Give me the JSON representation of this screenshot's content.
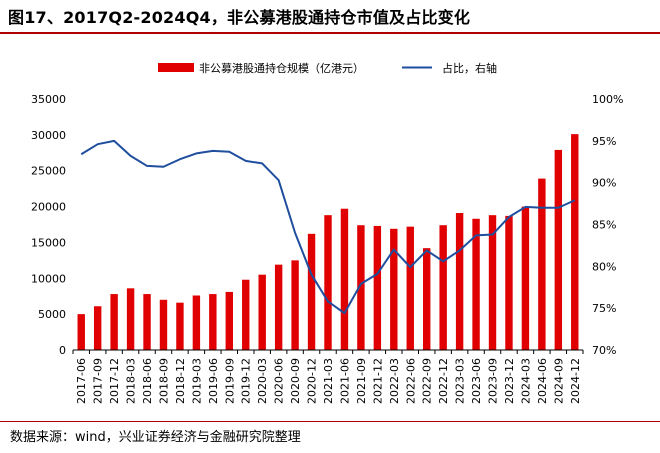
{
  "header": {
    "title": "图17、2017Q2-2024Q4，非公募港股通持仓市值及占比变化"
  },
  "footer": {
    "source": "数据来源：wind，兴业证券经济与金融研究院整理"
  },
  "chart_data": {
    "type": "bar",
    "categories": [
      "2017-06",
      "2017-09",
      "2017-12",
      "2018-03",
      "2018-06",
      "2018-09",
      "2018-12",
      "2019-03",
      "2019-06",
      "2019-09",
      "2019-12",
      "2020-03",
      "2020-06",
      "2020-09",
      "2020-12",
      "2021-03",
      "2021-06",
      "2021-09",
      "2021-12",
      "2022-03",
      "2022-06",
      "2022-09",
      "2022-12",
      "2023-03",
      "2023-06",
      "2023-09",
      "2023-12",
      "2024-03",
      "2024-06",
      "2024-09",
      "2024-12"
    ],
    "series": [
      {
        "name": "非公募港股通持仓规模（亿港元）",
        "type": "bar",
        "axis": "left",
        "color": "#e00000",
        "values": [
          5000,
          6100,
          7800,
          8600,
          7800,
          7000,
          6600,
          7600,
          7800,
          8100,
          9800,
          10500,
          11900,
          12500,
          16200,
          18800,
          19700,
          17400,
          17300,
          16900,
          17200,
          14200,
          17400,
          19100,
          18300,
          18800,
          18700,
          20000,
          23900,
          27900,
          30100
        ]
      },
      {
        "name": "占比，右轴",
        "type": "line",
        "axis": "right",
        "color": "#1f4e9e",
        "values": [
          93.4,
          94.6,
          95.0,
          93.2,
          92.0,
          91.9,
          92.8,
          93.5,
          93.8,
          93.7,
          92.6,
          92.3,
          90.3,
          84.0,
          79.0,
          75.8,
          74.4,
          77.9,
          79.1,
          82.0,
          79.9,
          81.9,
          80.6,
          81.9,
          83.7,
          83.8,
          85.9,
          87.1,
          87.0,
          87.0,
          87.9
        ]
      }
    ],
    "left_axis": {
      "ylim": [
        0,
        35000
      ],
      "ticks": [
        "0",
        "5000",
        "10000",
        "15000",
        "20000",
        "25000",
        "30000",
        "35000"
      ]
    },
    "right_axis": {
      "ylim": [
        70,
        100
      ],
      "ticks": [
        "70%",
        "75%",
        "80%",
        "85%",
        "90%",
        "95%",
        "100%"
      ]
    },
    "legend": {
      "position": "top",
      "entries": [
        "非公募港股通持仓规模（亿港元）",
        "占比，右轴"
      ]
    },
    "title": "",
    "xlabel": "",
    "ylabel": ""
  }
}
